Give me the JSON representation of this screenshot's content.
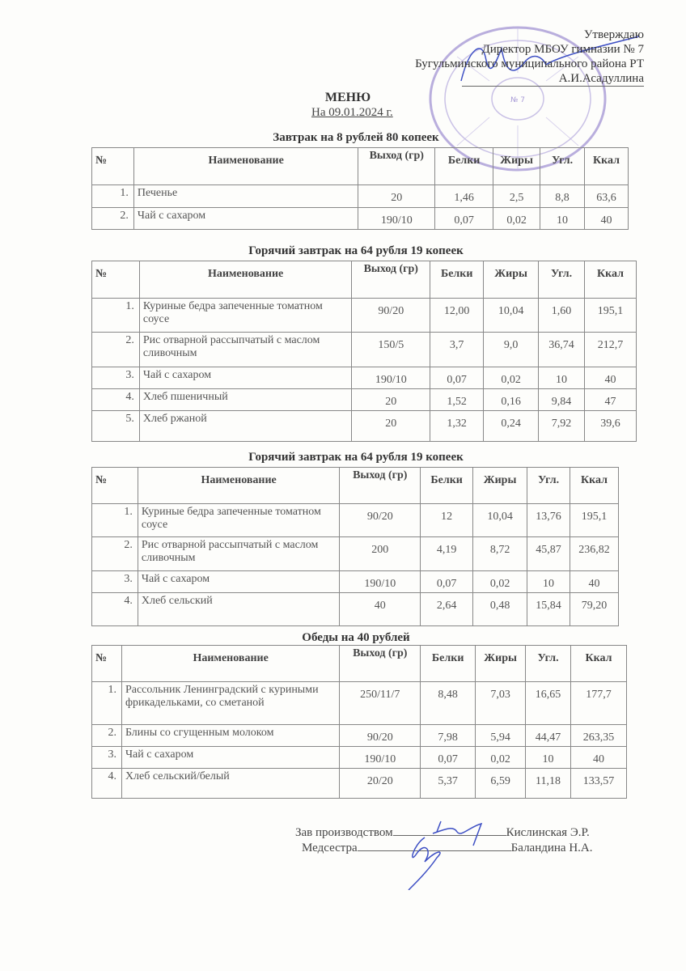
{
  "approval": {
    "lines": [
      "Утверждаю",
      "Директор МБОУ гимназии № 7",
      "Бугульминского муниципального района РТ",
      "А.И.Асадуллина"
    ]
  },
  "stamp": {
    "text": "ГИМНАЗИЯ № 7",
    "color": "#9b8fd0"
  },
  "title": "МЕНЮ",
  "date": "На 09.01.2024 г.",
  "headers": [
    "№",
    "Наименование",
    "Выход (гр)",
    "Белки",
    "Жиры",
    "Угл.",
    "Ккал"
  ],
  "tables": [
    {
      "caption": "Завтрак на 8 рублей 80 копеек",
      "rows": [
        [
          "1.",
          "Печенье",
          "20",
          "1,46",
          "2,5",
          "8,8",
          "63,6"
        ],
        [
          "2.",
          "Чай с сахаром",
          "190/10",
          "0,07",
          "0,02",
          "10",
          "40"
        ]
      ]
    },
    {
      "caption": "Горячий завтрак на 64 рубля 19 копеек",
      "rows": [
        [
          "1.",
          "Куриные бедра запеченные томатном соусе",
          "90/20",
          "12,00",
          "10,04",
          "1,60",
          "195,1"
        ],
        [
          "2.",
          "Рис отварной рассыпчатый с маслом сливочным",
          "150/5",
          "3,7",
          "9,0",
          "36,74",
          "212,7"
        ],
        [
          "3.",
          "Чай с сахаром",
          "190/10",
          "0,07",
          "0,02",
          "10",
          "40"
        ],
        [
          "4.",
          "Хлеб пшеничный",
          "20",
          "1,52",
          "0,16",
          "9,84",
          "47"
        ],
        [
          "5.",
          "Хлеб ржаной",
          "20",
          "1,32",
          "0,24",
          "7,92",
          "39,6"
        ]
      ]
    },
    {
      "caption": "Горячий завтрак на 64 рубля 19 копеек",
      "rows": [
        [
          "1.",
          "Куриные бедра запеченные томатном соусе",
          "90/20",
          "12",
          "10,04",
          "13,76",
          "195,1"
        ],
        [
          "2.",
          "Рис отварной рассыпчатый с маслом сливочным",
          "200",
          "4,19",
          "8,72",
          "45,87",
          "236,82"
        ],
        [
          "3.",
          "Чай с сахаром",
          "190/10",
          "0,07",
          "0,02",
          "10",
          "40"
        ],
        [
          "4.",
          "Хлеб сельский",
          "40",
          "2,64",
          "0,48",
          "15,84",
          "79,20"
        ]
      ]
    },
    {
      "caption": "Обеды на 40 рублей",
      "rows": [
        [
          "1.",
          "Рассольник Ленинградский с куриными фрикадельками, со сметаной",
          "250/11/7",
          "8,48",
          "7,03",
          "16,65",
          "177,7"
        ],
        [
          "2.",
          "Блины со сгущенным молоком",
          "90/20",
          "7,98",
          "5,94",
          "44,47",
          "263,35"
        ],
        [
          "3.",
          "Чай с сахаром",
          "190/10",
          "0,07",
          "0,02",
          "10",
          "40"
        ],
        [
          "4.",
          "Хлеб сельский/белый",
          "20/20",
          "5,37",
          "6,59",
          "11,18",
          "133,57"
        ]
      ]
    }
  ],
  "signatures": [
    {
      "role": "Зав производством",
      "name": "Кислинская Э.Р."
    },
    {
      "role": "Медсестра",
      "name": "Баландина Н.А."
    }
  ],
  "ink_color": "#3d4fc4"
}
